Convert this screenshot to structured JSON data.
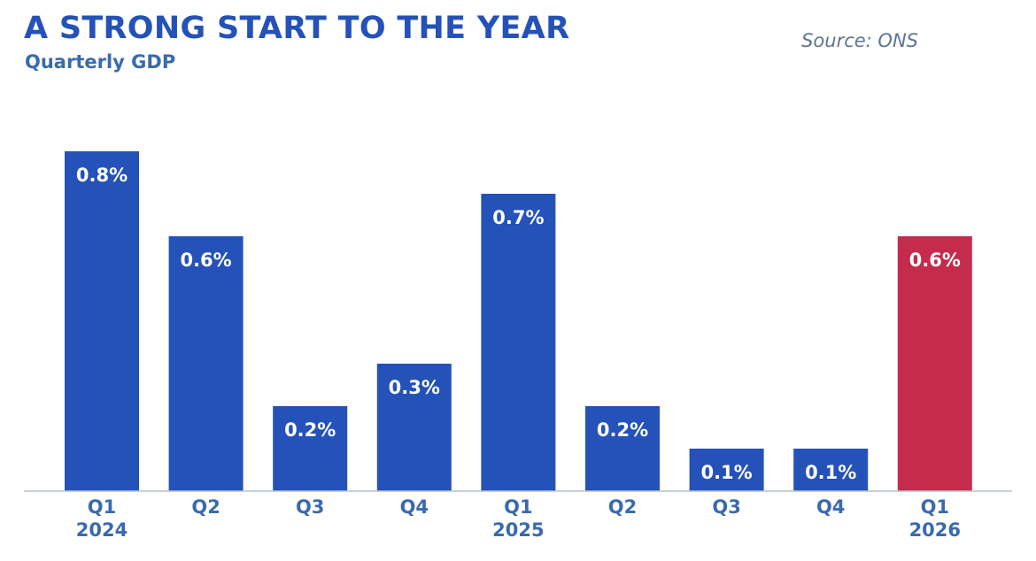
{
  "header": {
    "title": "A STRONG START TO THE YEAR",
    "subtitle": "Quarterly GDP",
    "source": "Source: ONS"
  },
  "chart_data": {
    "type": "bar",
    "title": "A STRONG START TO THE YEAR",
    "subtitle": "Quarterly GDP",
    "categories": [
      "Q1 2024",
      "Q2",
      "Q3",
      "Q4",
      "Q1 2025",
      "Q2",
      "Q3",
      "Q4",
      "Q1 2026"
    ],
    "tick_labels": [
      [
        "Q1",
        "2024"
      ],
      [
        "Q2"
      ],
      [
        "Q3"
      ],
      [
        "Q4"
      ],
      [
        "Q1",
        "2025"
      ],
      [
        "Q2"
      ],
      [
        "Q3"
      ],
      [
        "Q4"
      ],
      [
        "Q1",
        "2026"
      ]
    ],
    "values": [
      0.8,
      0.6,
      0.2,
      0.3,
      0.7,
      0.2,
      0.1,
      0.1,
      0.6
    ],
    "data_labels": [
      "0.8%",
      "0.6%",
      "0.2%",
      "0.3%",
      "0.7%",
      "0.2%",
      "0.1%",
      "0.1%",
      "0.6%"
    ],
    "colors": [
      "#2452b8",
      "#2452b8",
      "#2452b8",
      "#2452b8",
      "#2452b8",
      "#2452b8",
      "#2452b8",
      "#2452b8",
      "#c42b4d"
    ],
    "xlabel": "",
    "ylabel": "",
    "ylim": [
      0,
      0.8
    ],
    "grid": false,
    "legend": "none"
  }
}
